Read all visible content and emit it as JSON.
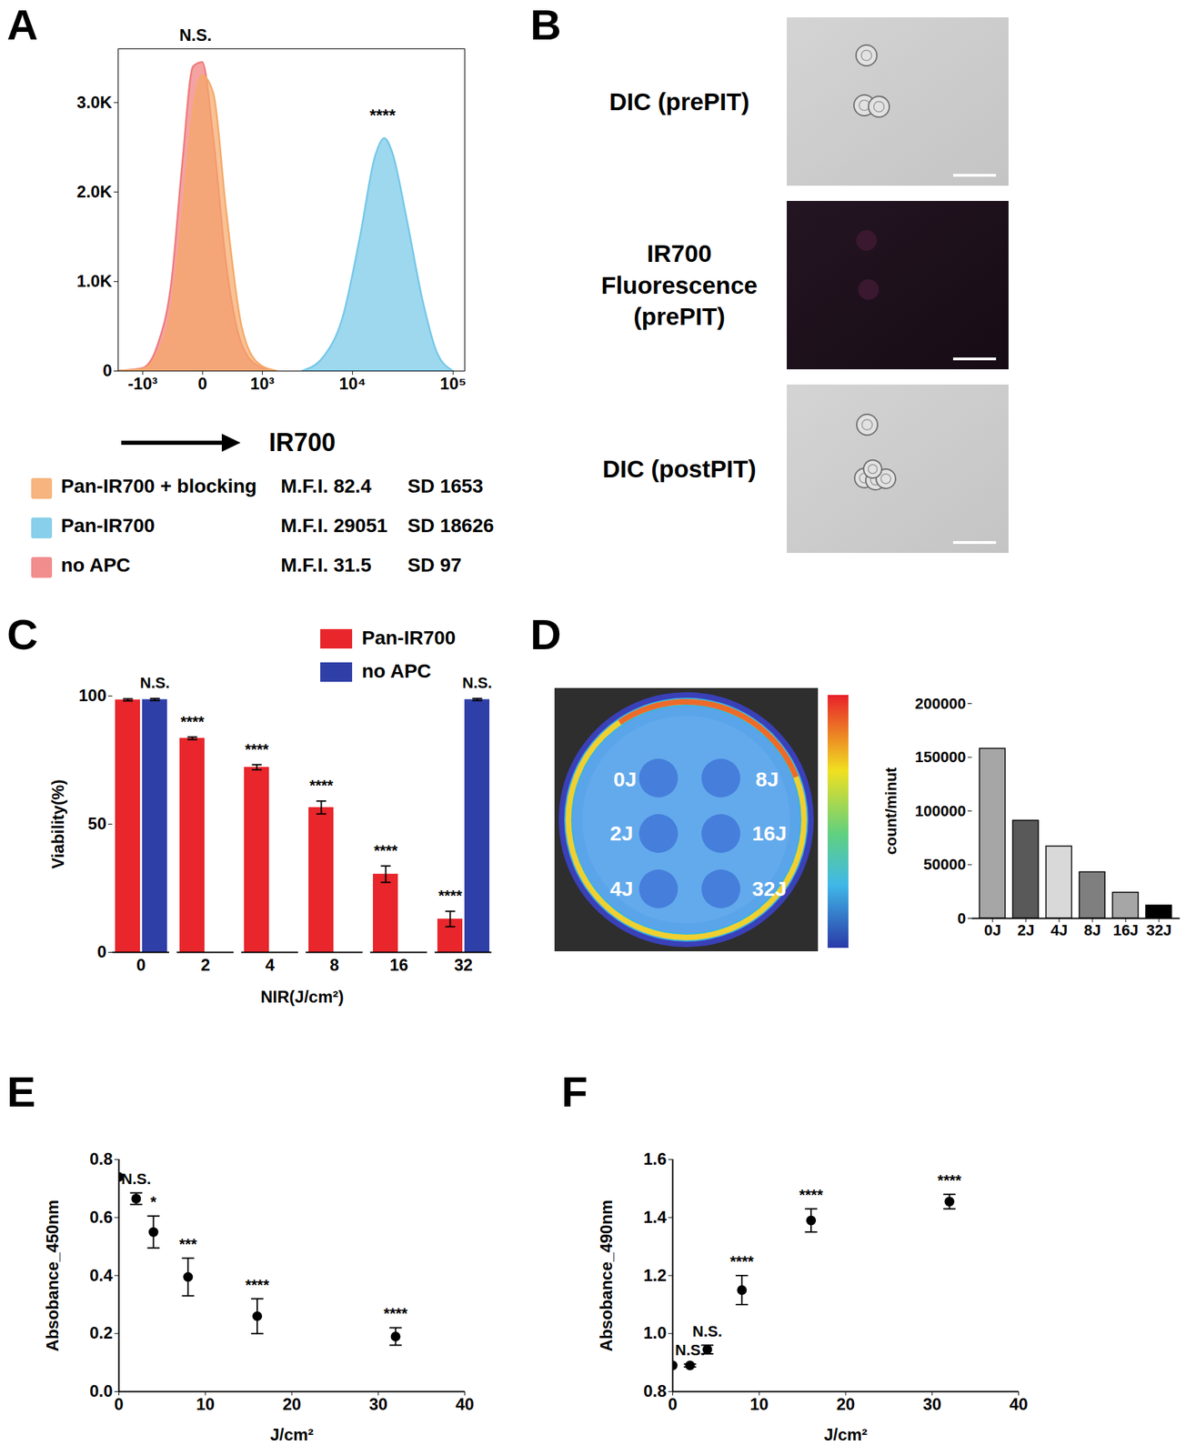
{
  "chart_data": [
    {
      "panel_label": "A",
      "type": "area",
      "x_label": "IR700",
      "xlim": [
        -2000,
        130000
      ],
      "xticks": [
        {
          "value": -1000,
          "label": "-10³"
        },
        0,
        {
          "value": 1000,
          "label": "10³"
        },
        {
          "value": 10000,
          "label": "10⁴"
        },
        {
          "value": 100000,
          "label": "10⁵"
        }
      ],
      "ylim": [
        0,
        3600
      ],
      "yticks": [
        0,
        {
          "value": 1000,
          "label": "1.0K"
        },
        {
          "value": 2000,
          "label": "2.0K"
        },
        {
          "value": 3000,
          "label": "3.0K"
        }
      ],
      "stat_labels": [
        "M.F.I.",
        "SD"
      ],
      "series": [
        {
          "name": "Pan-IR700 + blocking",
          "color": "#f5a868",
          "mfi": 82.4,
          "sd": 1653,
          "x": [
            -2000,
            -1000,
            -600,
            -350,
            -200,
            -80,
            0,
            100,
            250,
            500,
            900,
            1500
          ],
          "y": [
            0,
            20,
            200,
            700,
            1700,
            2900,
            3300,
            3100,
            1800,
            500,
            80,
            0
          ]
        },
        {
          "name": "Pan-IR700",
          "color": "#74c7e8",
          "mfi": 29051,
          "sd": 18626,
          "x": [
            3000,
            5000,
            8000,
            12000,
            17000,
            21000,
            25000,
            35000,
            50000,
            70000,
            100000
          ],
          "y": [
            0,
            150,
            600,
            1500,
            2400,
            2600,
            2450,
            1700,
            800,
            200,
            0
          ]
        },
        {
          "name": "no APC",
          "color": "#f07a7a",
          "mfi": 31.5,
          "sd": 97,
          "x": [
            -2000,
            -1000,
            -600,
            -350,
            -200,
            -80,
            0,
            100,
            250,
            500,
            900,
            1500
          ],
          "y": [
            0,
            30,
            300,
            1000,
            2300,
            3400,
            3450,
            2600,
            1200,
            300,
            50,
            0
          ]
        }
      ],
      "annotations": [
        {
          "text": "N.S.",
          "x": -60,
          "y": 3750
        },
        {
          "text": "****",
          "x": 20000,
          "y": 2850
        }
      ]
    },
    {
      "panel_label": "B",
      "type": "image",
      "labels": [
        "DIC (prePIT)",
        "IR700\nFluorescence\n(prePIT)",
        "DIC (postPIT)"
      ]
    },
    {
      "panel_label": "C",
      "type": "bar",
      "categories": [
        "0",
        "2",
        "4",
        "8",
        "16",
        "32"
      ],
      "x_label": "NIR(J/cm²)",
      "y_label": "Viability(%)",
      "ylim": [
        0,
        100
      ],
      "yticks": [
        0,
        50,
        100
      ],
      "legend": "top-right",
      "series": [
        {
          "name": "Pan-IR700",
          "color": "#e8262b",
          "values": [
            98.5,
            83.5,
            72.2,
            56.5,
            30.5,
            13
          ],
          "errors": [
            0.4,
            0.5,
            1,
            2.5,
            3.2,
            3
          ],
          "annotations": [
            null,
            "****",
            "****",
            "****",
            "****",
            "****"
          ]
        },
        {
          "name": "no APC",
          "color": "#2f3fa8",
          "values": [
            98.6,
            null,
            null,
            null,
            null,
            98.6
          ],
          "errors": [
            0.4,
            null,
            null,
            null,
            null,
            0.4
          ],
          "annotations": [
            "N.S.",
            null,
            null,
            null,
            null,
            "N.S."
          ]
        }
      ]
    },
    {
      "panel_label": "D",
      "type": "image",
      "labels": [
        "0J",
        "2J",
        "4J",
        "8J",
        "16J",
        "32J"
      ]
    },
    {
      "type": "bar",
      "categories": [
        "0J",
        "2J",
        "4J",
        "8J",
        "16J",
        "32J"
      ],
      "values": [
        158000,
        91000,
        67000,
        43000,
        24000,
        12000
      ],
      "colors": [
        "#a6a6a6",
        "#595959",
        "#d9d9d9",
        "#7f7f7f",
        "#a6a6a6",
        "#000000"
      ],
      "y_label": "count/minut",
      "ylim": [
        0,
        200000
      ],
      "yticks": [
        0,
        50000,
        100000,
        150000,
        200000
      ]
    },
    {
      "panel_label": "E",
      "type": "scatter",
      "x": [
        0,
        2,
        4,
        8,
        16,
        32
      ],
      "values": [
        0.74,
        0.665,
        0.55,
        0.395,
        0.26,
        0.19
      ],
      "errors": [
        0,
        0.02,
        0.055,
        0.065,
        0.06,
        0.03
      ],
      "annotations": [
        null,
        "N.S.",
        "*",
        "***",
        "****",
        "****"
      ],
      "x_label": "J/cm²",
      "y_label": "Absobance_450nm",
      "xlim": [
        0,
        40
      ],
      "xticks": [
        0,
        10,
        20,
        30,
        40
      ],
      "ylim": [
        0,
        0.8
      ],
      "yticks": [
        {
          "value": 0,
          "label": "0.0"
        },
        0.2,
        0.4,
        0.6,
        0.8
      ]
    },
    {
      "panel_label": "F",
      "type": "scatter",
      "x": [
        0,
        2,
        4,
        8,
        16,
        32
      ],
      "values": [
        0.89,
        0.89,
        0.945,
        1.15,
        1.39,
        1.455
      ],
      "errors": [
        0,
        0.005,
        0.015,
        0.05,
        0.04,
        0.025
      ],
      "annotations": [
        null,
        "N.S.",
        "N.S.",
        "****",
        "****",
        "****"
      ],
      "x_label": "J/cm²",
      "y_label": "Absobance_490nm",
      "xlim": [
        0,
        40
      ],
      "xticks": [
        0,
        10,
        20,
        30,
        40
      ],
      "ylim": [
        0.8,
        1.6
      ],
      "yticks": [
        0.8,
        {
          "value": 1,
          "label": "1.0"
        },
        1.2,
        1.4,
        1.6
      ]
    }
  ]
}
